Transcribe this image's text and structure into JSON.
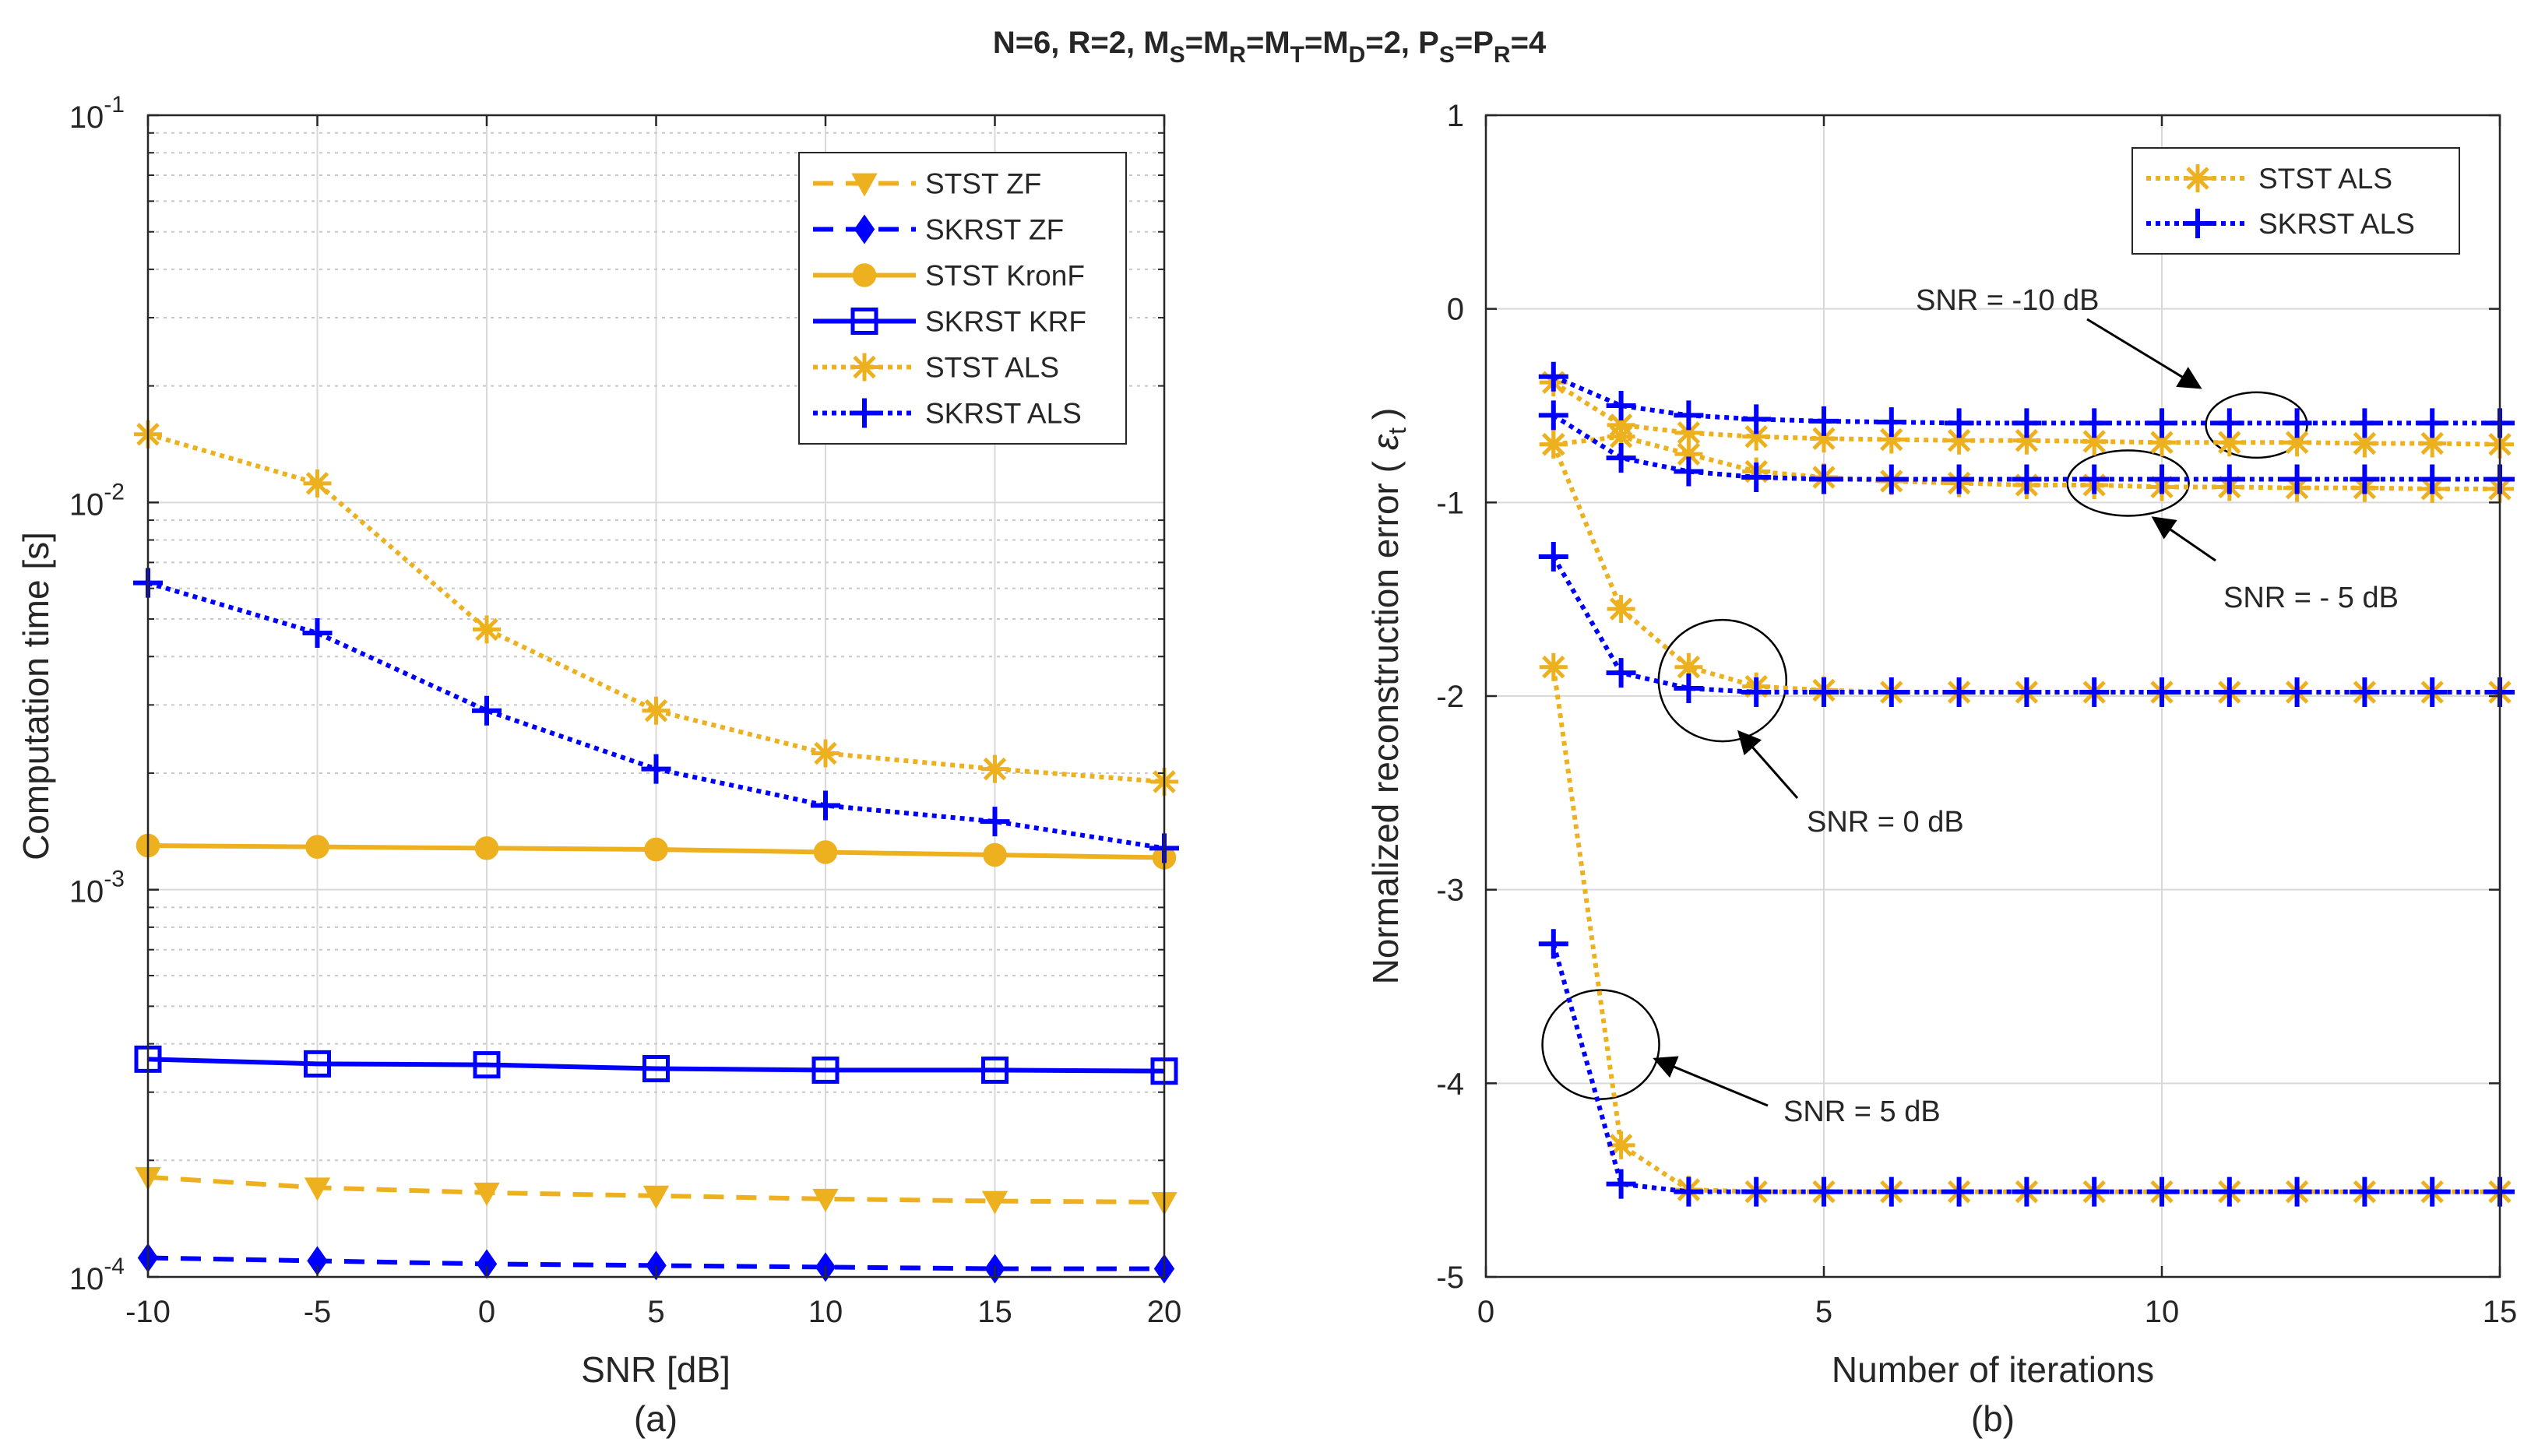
{
  "title": {
    "pre": "N=6,  R=2,  M",
    "s1": "S",
    "eq1": "=M",
    "s2": "R",
    "eq2": "=M",
    "s3": "T",
    "eq3": "=M",
    "s4": "D",
    "mid": "=2,  P",
    "s5": "S",
    "eq4": "=P",
    "s6": "R",
    "post": "=4"
  },
  "colors": {
    "stst": "#EDB120",
    "skrst": "#0000FF"
  },
  "chart_data": [
    {
      "type": "line",
      "panel_label": "(a)",
      "xlabel": "SNR [dB]",
      "ylabel": "Computation time [s]",
      "xlim": [
        -10,
        20
      ],
      "xticks": [
        -10,
        -5,
        0,
        5,
        10,
        15,
        20
      ],
      "xtick_labels": [
        "-10",
        "-5",
        "0",
        "5",
        "10",
        "15",
        "20"
      ],
      "yscale": "log",
      "ylim": [
        0.0001,
        0.1
      ],
      "yticks": [
        {
          "base": "10",
          "exp": "-4",
          "value": 0.0001
        },
        {
          "base": "10",
          "exp": "-3",
          "value": 0.001
        },
        {
          "base": "10",
          "exp": "-2",
          "value": 0.01
        },
        {
          "base": "10",
          "exp": "-1",
          "value": 0.1
        }
      ],
      "grid": true,
      "legend_position": "top-right",
      "x": [
        -10,
        -5,
        0,
        5,
        10,
        15,
        20
      ],
      "series": [
        {
          "name": "STST ZF",
          "color": "#EDB120",
          "line": "dashed",
          "marker": "triangle-down",
          "values": [
            0.000181,
            0.00017,
            0.000165,
            0.000162,
            0.000159,
            0.000157,
            0.000156
          ]
        },
        {
          "name": "SKRST ZF",
          "color": "#0000FF",
          "line": "dashed",
          "marker": "diamond",
          "values": [
            0.000112,
            0.00011,
            0.000108,
            0.000107,
            0.000106,
            0.000105,
            0.000105
          ]
        },
        {
          "name": "STST KronF",
          "color": "#EDB120",
          "line": "solid",
          "marker": "circle",
          "values": [
            0.0013,
            0.00129,
            0.00128,
            0.00127,
            0.00125,
            0.00123,
            0.00121
          ]
        },
        {
          "name": "SKRST KRF",
          "color": "#0000FF",
          "line": "solid",
          "marker": "square",
          "values": [
            0.000365,
            0.000355,
            0.000353,
            0.000345,
            0.000342,
            0.000342,
            0.00034
          ]
        },
        {
          "name": "STST ALS",
          "color": "#EDB120",
          "line": "dotted",
          "marker": "asterisk",
          "values": [
            0.015,
            0.0112,
            0.0047,
            0.0029,
            0.00225,
            0.00205,
            0.0019
          ]
        },
        {
          "name": "SKRST ALS",
          "color": "#0000FF",
          "line": "dotted",
          "marker": "plus",
          "values": [
            0.0062,
            0.0046,
            0.0029,
            0.00205,
            0.00165,
            0.0015,
            0.00128
          ]
        }
      ]
    },
    {
      "type": "line",
      "panel_label": "(b)",
      "xlabel": "Number of iterations",
      "ylabel": "Normalized reconstruction error (",
      "ylabel_eps": "ε",
      "ylabel_sub": "t",
      "ylabel_close": ")",
      "xlim": [
        0,
        15
      ],
      "xticks": [
        0,
        5,
        10,
        15
      ],
      "xtick_labels": [
        "0",
        "5",
        "10",
        "15"
      ],
      "ylim": [
        -5,
        1
      ],
      "yticks": [
        -5,
        -4,
        -3,
        -2,
        -1,
        0,
        1
      ],
      "ytick_labels": [
        "-5",
        "-4",
        "-3",
        "-2",
        "-1",
        "0",
        "1"
      ],
      "grid": true,
      "legend_position": "top-right",
      "x": [
        1,
        2,
        3,
        4,
        5,
        6,
        7,
        8,
        9,
        10,
        11,
        12,
        13,
        14,
        15
      ],
      "series": [
        {
          "name": "STST ALS",
          "color": "#EDB120",
          "line": "dotted",
          "marker": "asterisk",
          "snr_db": -10,
          "values": [
            -0.38,
            -0.6,
            -0.64,
            -0.66,
            -0.67,
            -0.675,
            -0.68,
            -0.68,
            -0.685,
            -0.69,
            -0.69,
            -0.69,
            -0.695,
            -0.695,
            -0.7
          ]
        },
        {
          "name": "STST ALS",
          "color": "#EDB120",
          "line": "dotted",
          "marker": "asterisk",
          "snr_db": -5,
          "values": [
            -0.7,
            -0.66,
            -0.75,
            -0.84,
            -0.87,
            -0.89,
            -0.9,
            -0.91,
            -0.91,
            -0.92,
            -0.92,
            -0.925,
            -0.925,
            -0.93,
            -0.93
          ]
        },
        {
          "name": "STST ALS",
          "color": "#EDB120",
          "line": "dotted",
          "marker": "asterisk",
          "snr_db": 0,
          "values": [
            -0.7,
            -1.55,
            -1.85,
            -1.95,
            -1.97,
            -1.98,
            -1.98,
            -1.98,
            -1.98,
            -1.98,
            -1.98,
            -1.98,
            -1.98,
            -1.98,
            -1.98
          ]
        },
        {
          "name": "STST ALS",
          "color": "#EDB120",
          "line": "dotted",
          "marker": "asterisk",
          "snr_db": 5,
          "values": [
            -1.85,
            -4.32,
            -4.55,
            -4.56,
            -4.56,
            -4.56,
            -4.56,
            -4.56,
            -4.56,
            -4.56,
            -4.56,
            -4.56,
            -4.56,
            -4.56,
            -4.56
          ]
        },
        {
          "name": "SKRST ALS",
          "color": "#0000FF",
          "line": "dotted",
          "marker": "plus",
          "snr_db": -10,
          "values": [
            -0.35,
            -0.5,
            -0.55,
            -0.57,
            -0.58,
            -0.585,
            -0.59,
            -0.59,
            -0.59,
            -0.59,
            -0.59,
            -0.59,
            -0.59,
            -0.59,
            -0.59
          ]
        },
        {
          "name": "SKRST ALS",
          "color": "#0000FF",
          "line": "dotted",
          "marker": "plus",
          "snr_db": -5,
          "values": [
            -0.55,
            -0.77,
            -0.84,
            -0.87,
            -0.88,
            -0.88,
            -0.88,
            -0.88,
            -0.88,
            -0.88,
            -0.88,
            -0.88,
            -0.88,
            -0.88,
            -0.88
          ]
        },
        {
          "name": "SKRST ALS",
          "color": "#0000FF",
          "line": "dotted",
          "marker": "plus",
          "snr_db": 0,
          "values": [
            -1.28,
            -1.88,
            -1.96,
            -1.98,
            -1.98,
            -1.98,
            -1.98,
            -1.98,
            -1.98,
            -1.98,
            -1.98,
            -1.98,
            -1.98,
            -1.98,
            -1.98
          ]
        },
        {
          "name": "SKRST ALS",
          "color": "#0000FF",
          "line": "dotted",
          "marker": "plus",
          "snr_db": 5,
          "values": [
            -3.28,
            -4.52,
            -4.56,
            -4.56,
            -4.56,
            -4.56,
            -4.56,
            -4.56,
            -4.56,
            -4.56,
            -4.56,
            -4.56,
            -4.56,
            -4.56,
            -4.56
          ]
        }
      ],
      "annotations": [
        {
          "text": "SNR = -10 dB",
          "ellipse_center": [
            11.4,
            -0.6
          ]
        },
        {
          "text": "SNR = - 5 dB",
          "ellipse_center": [
            9.5,
            -0.9
          ]
        },
        {
          "text": "SNR = 0 dB",
          "ellipse_center": [
            3.5,
            -1.92
          ]
        },
        {
          "text": "SNR = 5 dB",
          "ellipse_center": [
            1.7,
            -3.8
          ]
        }
      ]
    }
  ]
}
